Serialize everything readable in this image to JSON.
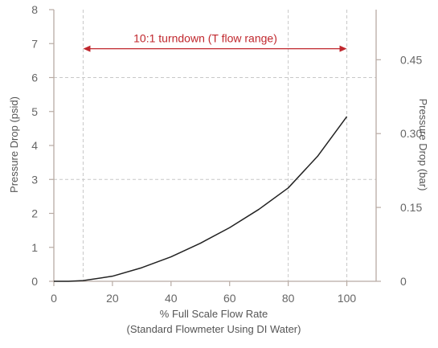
{
  "chart_data": {
    "type": "line",
    "xlabel": "% Full Scale Flow Rate",
    "xlabel_sub": "(Standard Flowmeter Using DI Water)",
    "ylabel": "Pressure Drop (psid)",
    "y2label": "Pressure Drop (bar)",
    "xlim": [
      0,
      110
    ],
    "ylim": [
      0,
      8
    ],
    "x_ticks": [
      0,
      20,
      40,
      60,
      80,
      100
    ],
    "y_ticks": [
      0,
      1,
      2,
      3,
      4,
      5,
      6,
      7,
      8
    ],
    "y2_ticks": [
      {
        "label": "0",
        "psi": 0
      },
      {
        "label": "0.15",
        "psi": 2.175
      },
      {
        "label": "0.30",
        "psi": 4.35
      },
      {
        "label": "0.45",
        "psi": 6.525
      }
    ],
    "grid": "dashed reference lines at x=10, 80, 100 and y=3, 6",
    "series": [
      {
        "color": "#222222",
        "x": [
          0,
          5,
          10,
          20,
          30,
          40,
          50,
          60,
          70,
          80,
          90,
          100
        ],
        "y": [
          0,
          0,
          0.02,
          0.15,
          0.4,
          0.72,
          1.12,
          1.58,
          2.12,
          2.75,
          3.68,
          4.85
        ]
      }
    ],
    "annotation": {
      "text": "10:1 turndown (T flow range)",
      "x_start": 10,
      "x_end": 100,
      "y": 6.85,
      "color": "#c0272d"
    },
    "reference_lines": {
      "vertical": [
        10,
        80,
        100
      ],
      "horizontal": [
        3,
        6
      ]
    },
    "colors": {
      "axis": "#b8aba4",
      "grid": "#c8c8c8",
      "line": "#222222",
      "annotation": "#c0272d"
    }
  }
}
